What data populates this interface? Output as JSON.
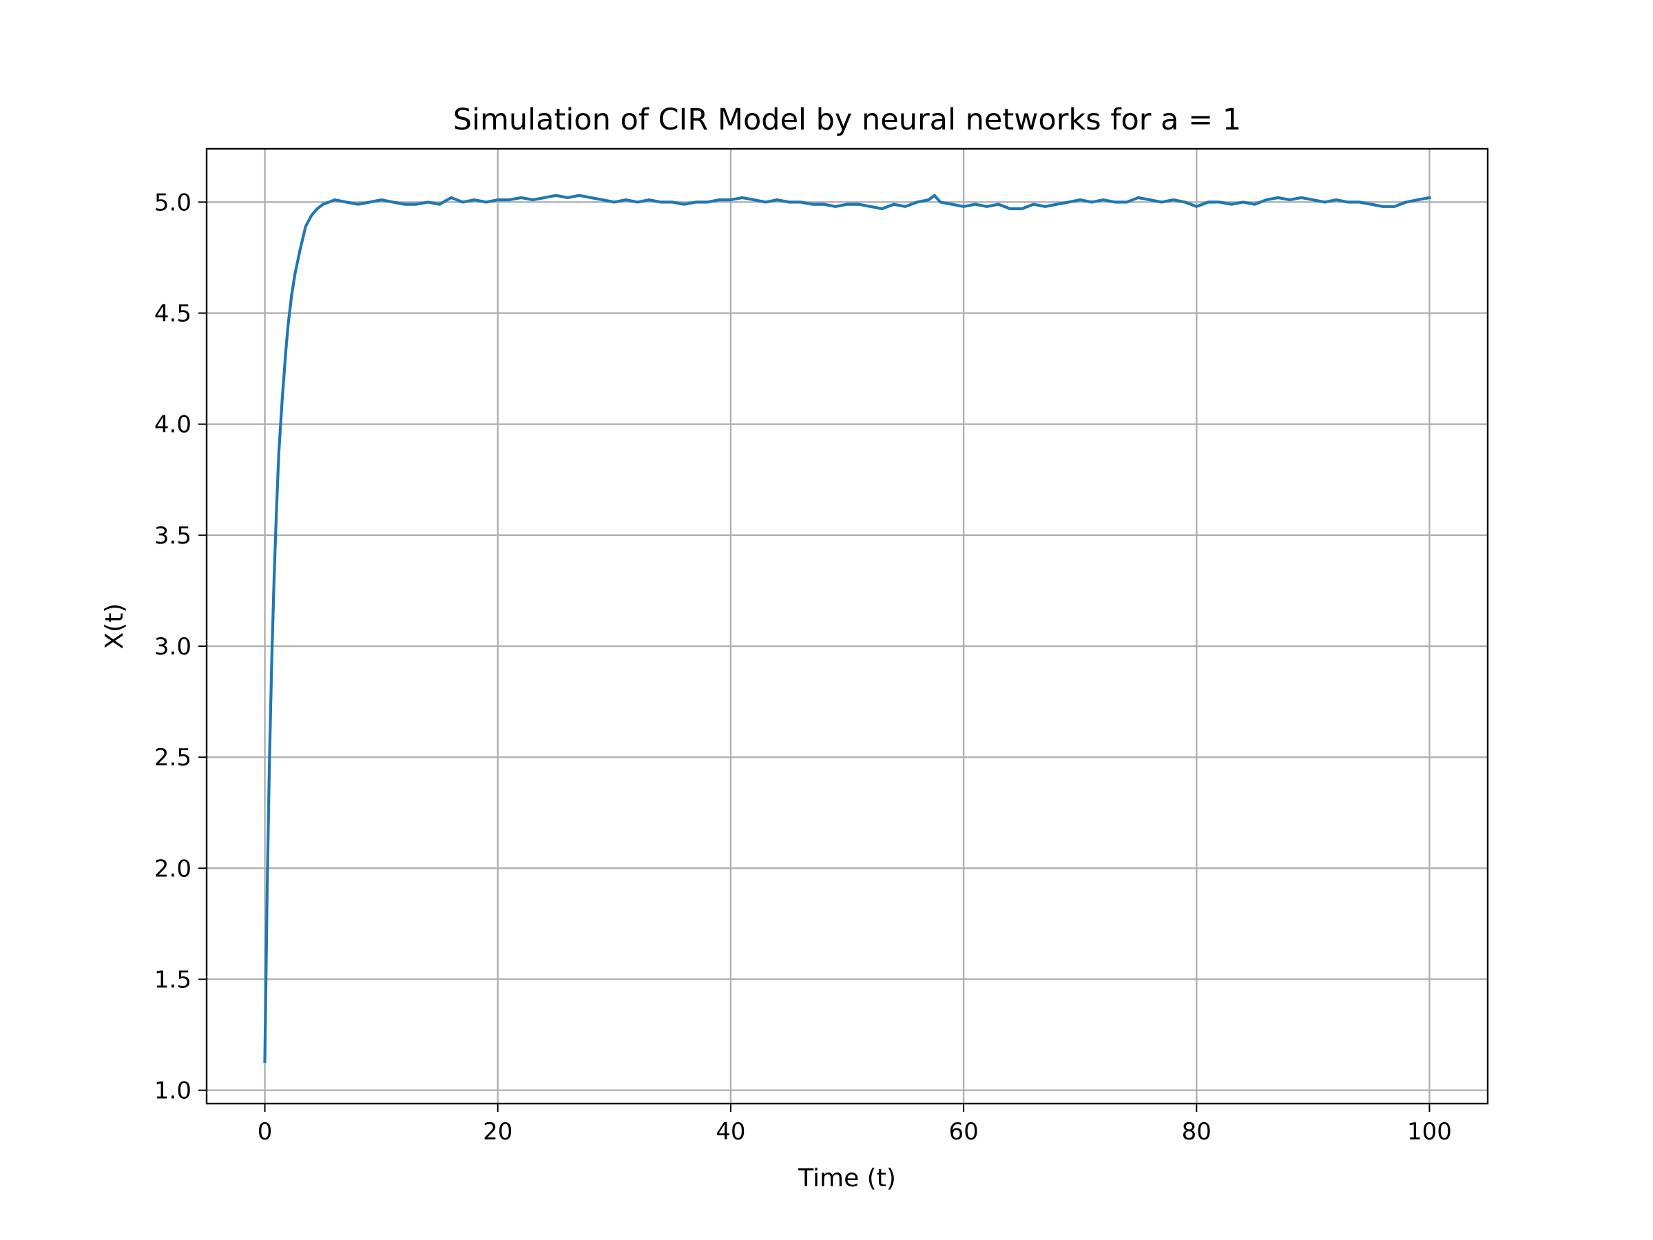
{
  "chart_data": {
    "type": "line",
    "title": "Simulation of CIR Model by neural networks for a = 1",
    "xlabel": "Time (t)",
    "ylabel": "X(t)",
    "xlim": [
      -5,
      105
    ],
    "ylim": [
      0.94,
      5.24
    ],
    "xticks": [
      0,
      20,
      40,
      60,
      80,
      100
    ],
    "yticks": [
      1.0,
      1.5,
      2.0,
      2.5,
      3.0,
      3.5,
      4.0,
      4.5,
      5.0
    ],
    "xtick_labels": [
      "0",
      "20",
      "40",
      "60",
      "80",
      "100"
    ],
    "ytick_labels": [
      "1.0",
      "1.5",
      "2.0",
      "2.5",
      "3.0",
      "3.5",
      "4.0",
      "4.5",
      "5.0"
    ],
    "grid": true,
    "series": [
      {
        "color": "#1f77b4",
        "x": [
          0,
          0.2,
          0.4,
          0.6,
          0.8,
          1.0,
          1.2,
          1.5,
          1.8,
          2.0,
          2.3,
          2.6,
          3.0,
          3.5,
          4.0,
          4.5,
          5.0,
          5.5,
          6.0,
          7.0,
          8.0,
          9.0,
          10.0,
          11.0,
          12.0,
          13.0,
          14.0,
          15.0,
          16.0,
          17.0,
          18.0,
          19.0,
          20.0,
          21.0,
          22.0,
          23.0,
          24.0,
          25.0,
          26.0,
          27.0,
          28.0,
          29.0,
          30.0,
          31.0,
          32.0,
          33.0,
          34.0,
          35.0,
          36.0,
          37.0,
          38.0,
          39.0,
          40.0,
          41.0,
          42.0,
          43.0,
          44.0,
          45.0,
          46.0,
          47.0,
          48.0,
          49.0,
          50.0,
          51.0,
          52.0,
          53.0,
          54.0,
          55.0,
          56.0,
          57.0,
          57.5,
          58.0,
          59.0,
          60.0,
          61.0,
          62.0,
          63.0,
          64.0,
          65.0,
          66.0,
          67.0,
          68.0,
          69.0,
          70.0,
          71.0,
          72.0,
          73.0,
          74.0,
          75.0,
          76.0,
          77.0,
          78.0,
          79.0,
          80.0,
          81.0,
          82.0,
          83.0,
          84.0,
          85.0,
          86.0,
          87.0,
          88.0,
          89.0,
          90.0,
          91.0,
          92.0,
          93.0,
          94.0,
          95.0,
          96.0,
          97.0,
          98.0,
          99.0,
          100.0
        ],
        "y": [
          1.13,
          1.9,
          2.5,
          2.95,
          3.32,
          3.62,
          3.87,
          4.12,
          4.33,
          4.45,
          4.58,
          4.68,
          4.78,
          4.89,
          4.94,
          4.97,
          4.99,
          5.0,
          5.01,
          5.0,
          4.99,
          5.0,
          5.01,
          5.0,
          4.99,
          4.99,
          5.0,
          4.99,
          5.02,
          5.0,
          5.01,
          5.0,
          5.01,
          5.01,
          5.02,
          5.01,
          5.02,
          5.03,
          5.02,
          5.03,
          5.02,
          5.01,
          5.0,
          5.01,
          5.0,
          5.01,
          5.0,
          5.0,
          4.99,
          5.0,
          5.0,
          5.01,
          5.01,
          5.02,
          5.01,
          5.0,
          5.01,
          5.0,
          5.0,
          4.99,
          4.99,
          4.98,
          4.99,
          4.99,
          4.98,
          4.97,
          4.99,
          4.98,
          5.0,
          5.01,
          5.03,
          5.0,
          4.99,
          4.98,
          4.99,
          4.98,
          4.99,
          4.97,
          4.97,
          4.99,
          4.98,
          4.99,
          5.0,
          5.01,
          5.0,
          5.01,
          5.0,
          5.0,
          5.02,
          5.01,
          5.0,
          5.01,
          5.0,
          4.98,
          5.0,
          5.0,
          4.99,
          5.0,
          4.99,
          5.01,
          5.02,
          5.01,
          5.02,
          5.01,
          5.0,
          5.01,
          5.0,
          5.0,
          4.99,
          4.98,
          4.98,
          5.0,
          5.01,
          5.02
        ]
      }
    ]
  }
}
